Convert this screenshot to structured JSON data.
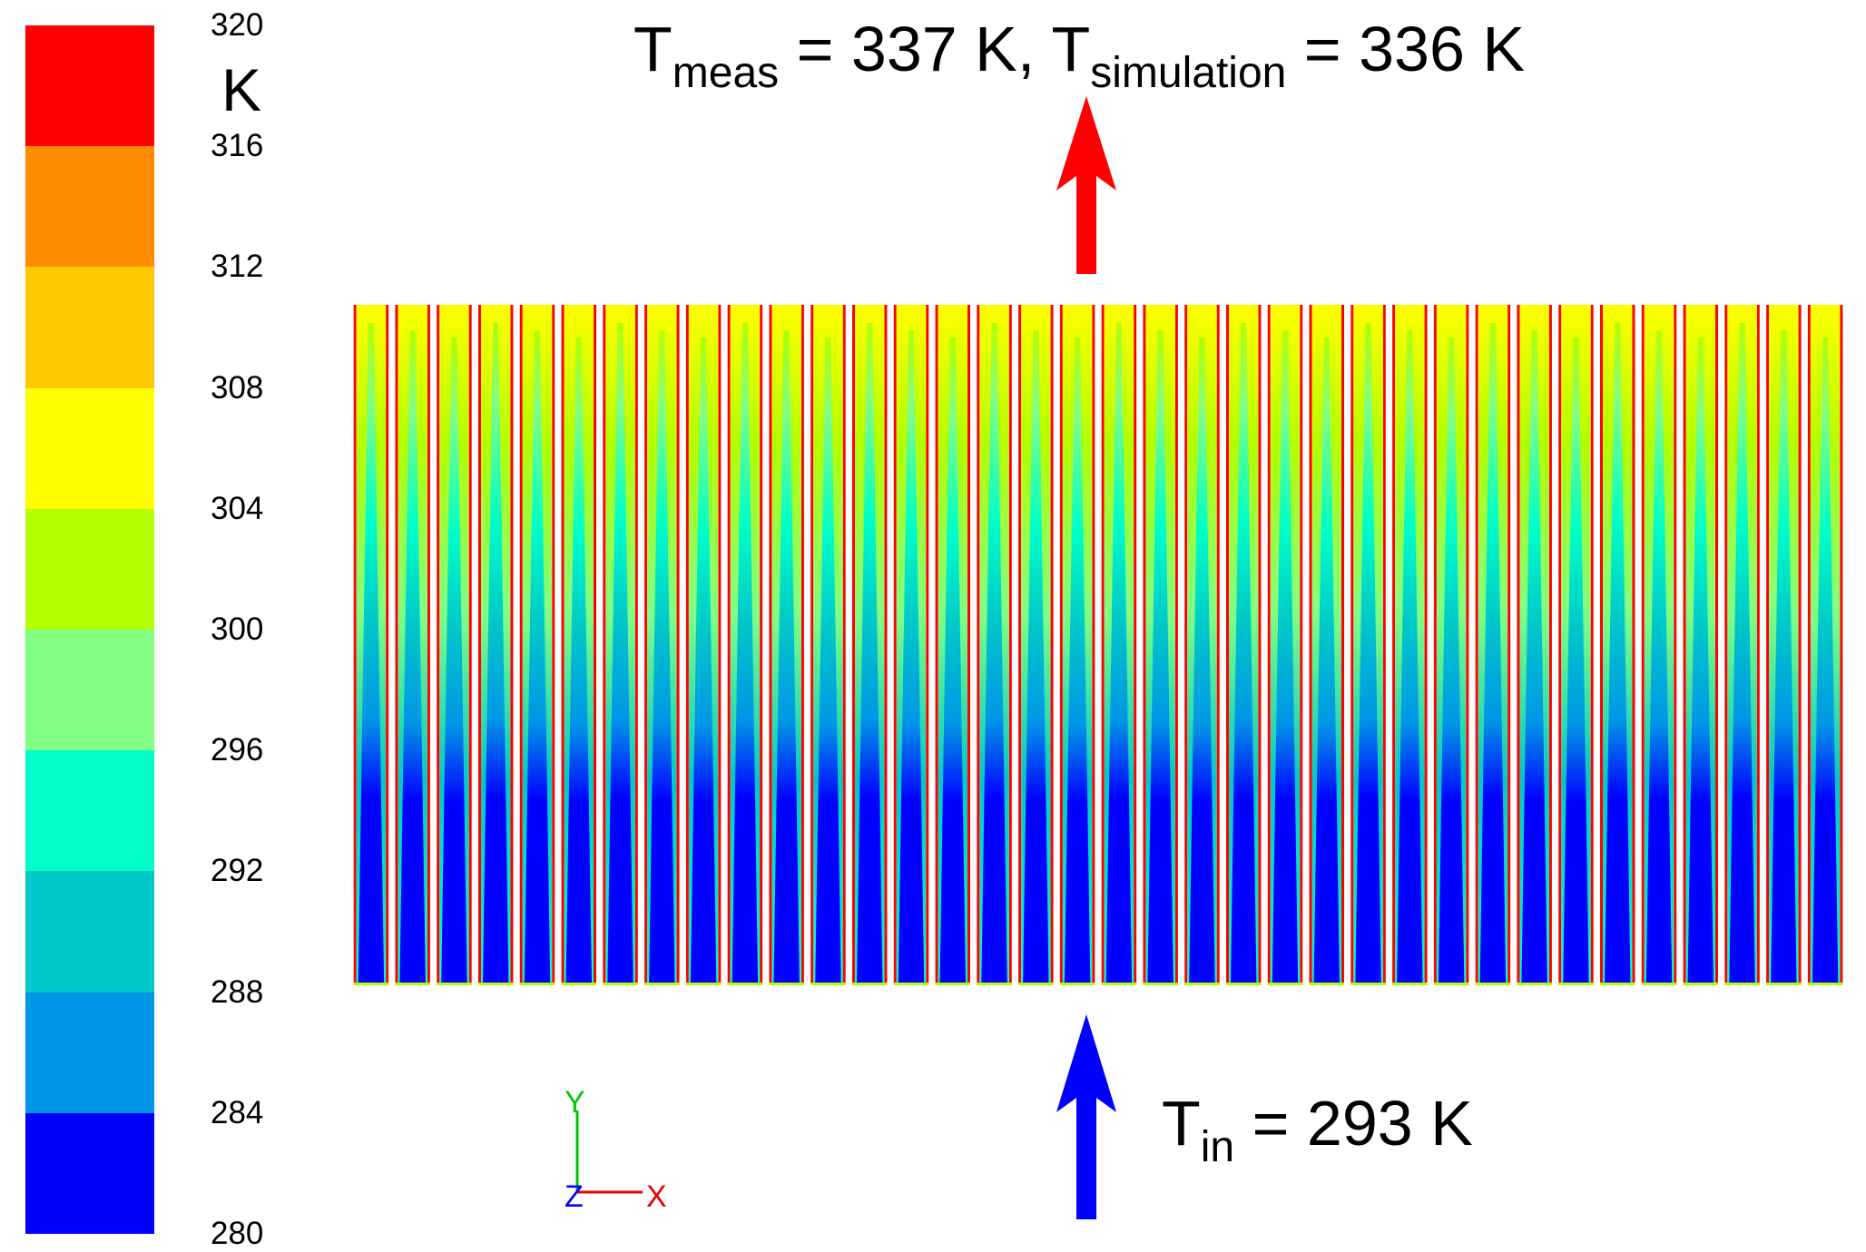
{
  "legend": {
    "unit": "K",
    "ticks": [
      "320",
      "316",
      "312",
      "308",
      "304",
      "300",
      "296",
      "292",
      "288",
      "284",
      "280"
    ],
    "band_colors": [
      "#ff0000",
      "#ff8c00",
      "#ffc800",
      "#ffff00",
      "#b4ff00",
      "#82ff82",
      "#00ffc8",
      "#00c8c8",
      "#0096e6",
      "#0000ff"
    ]
  },
  "annotations": {
    "outlet": {
      "symbol": "T",
      "sub1": "meas",
      "mid": " = 337 K, T",
      "sub2": "simulation",
      "tail": " = 336 K"
    },
    "inlet": {
      "symbol": "T",
      "sub": "in",
      "tail": " = 293 K"
    }
  },
  "axes": {
    "y": "Y",
    "z": "Z",
    "x": "X"
  },
  "colors": {
    "outlet_arrow": "#ff0000",
    "inlet_arrow": "#0000ff"
  },
  "contour": {
    "channel_count": 36
  }
}
